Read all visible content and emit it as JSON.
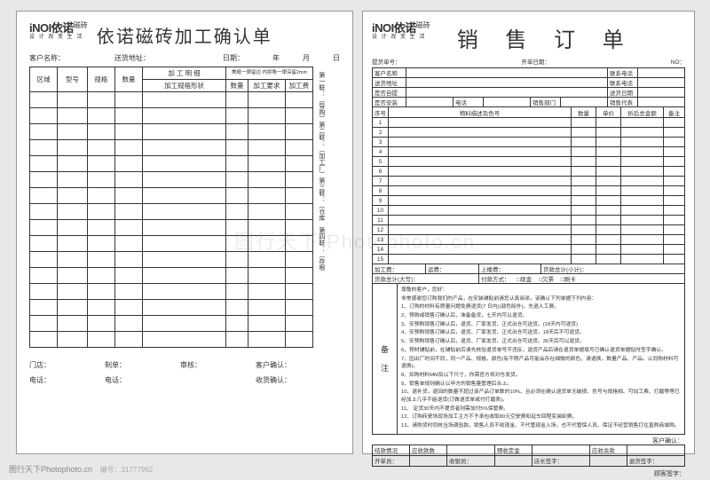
{
  "logo": {
    "main": "iNOI依诺",
    "sub_right": "磁砖",
    "sub": "设 计 改 变 生 活"
  },
  "left": {
    "title": "依诺磁砖加工确认单",
    "meta": {
      "customer_label": "客户名称：",
      "addr_label": "送货地址：",
      "date_label": "日期：",
      "year": "年",
      "month": "月",
      "day": "日"
    },
    "head": {
      "c1": "区域",
      "c2": "型号",
      "c3": "规格",
      "c4": "数量",
      "group": "加 工 明 细",
      "group_note": "美缝一律留边\n内拼角一律深留2mm",
      "s1": "加工规格形状",
      "s2": "数量",
      "s3": "加工要求",
      "s4": "加工费"
    },
    "side_text": "第一联：（导购）第二联：（加工厂）第三联：（仓库 第四联：（存根",
    "footer": {
      "r1a": "门店：",
      "r1b": "制单：",
      "r1c": "审核：",
      "r1d": "客户确认：",
      "r2a": "电话：",
      "r2b": "电话：",
      "r2c": "",
      "r2d": "收货确认："
    },
    "row_count": 16
  },
  "right": {
    "title": "销 售 订 单",
    "meta": {
      "a": "提货单号：",
      "b": "开单日期：",
      "c": "NO："
    },
    "head_rows": [
      [
        [
          "客户名称",
          ""
        ],
        [
          "联系电话",
          ""
        ]
      ],
      [
        [
          "送货地址",
          ""
        ],
        [
          "联系电话",
          ""
        ]
      ],
      [
        [
          "是否自提",
          ""
        ],
        [
          "送货日期",
          ""
        ]
      ],
      [
        [
          "是否安装",
          ""
        ],
        [
          "电话",
          ""
        ],
        [
          "销售部门",
          ""
        ],
        [
          "销售代表",
          ""
        ]
      ]
    ],
    "cols": [
      "序号",
      "物料描述及色号",
      "数量",
      "单价",
      "折后总金额",
      "备注"
    ],
    "item_count": 15,
    "sum1": [
      "加工费：",
      "运费：",
      "上楼费：",
      "货款总计(小计)："
    ],
    "sum2_label": "货款总计(大写)：",
    "pay_label": "付款方式：",
    "pay_opts": [
      "□现金",
      "□欠票",
      "□刷卡"
    ],
    "remark_label": "备注",
    "remark_lines": [
      "尊敬的客户，您好：",
      "非常感谢您订购我们的产品，在安装铺贴前请您认真阅读，该确认下列单据下列内容：",
      "1、订购的材料有质量问题免费退货(7 日内)(调色除外)，先退人工费。",
      "2、预购或销售订确认后，准备备货，七天内可以退货。",
      "3、安预购销售订确认后，退货、厂家发货、正式出仓可送货。(18天内可退货)",
      "4、安预购销售订确认后，退货、厂家发货、正式出仓可送货，18天后不可退货。",
      "5、安预购销售订确认后，退货、厂家发货、正式出仓可送货。36天后可以退货。",
      "6、预材铺贴前，在铺贴前后请先核验退货单号不违反，退货产品后请在退货单据填写已确认退货单据贴时签字确认。",
      "7、因出厂时间不同，同一产品、规格、颜色(有不限产品可能会存在细微的颜色，请退换，数量产品、产品。认同购材料可退换)。",
      "8、如购材料MM及以下尺寸，你需官方将对仓发货。",
      "9、销售单规则确认以甲方的销售量管理后合上。",
      "10、退补货，退回的数量不超过该产品订单数的10%、且必须在确认退货单无破损、色号与规格相、可加工费、打磨等等已经加上几乎不能退货(订做退货单或付打磨表)。",
      "11、 定货30天内不提货者则需加付5%保管费。",
      "12、订购砖瓷场现场加工主方不予承包收取80元空驶费和延车回程变装卸费。",
      "13、请购货时同核当场调验款，销售人员不收现金、不代管现金入场，也不代管保人员。保证不经营销售打往直购商城购。"
    ],
    "confirm": "客户确认：",
    "foot_rows": [
      [
        "结款情况",
        "应收款数",
        "",
        "预收定金",
        "",
        "应收余款",
        ""
      ],
      [
        "开单员：",
        "",
        "收银员：",
        "",
        "店长签字：",
        "",
        "退货签字：",
        ""
      ]
    ],
    "last": "顾客签字："
  },
  "watermark": {
    "site": "图行天下Photophoto.cn",
    "id_label": "编号：",
    "id": "31777992",
    "center": "图行天下 Photophoto.cn"
  }
}
